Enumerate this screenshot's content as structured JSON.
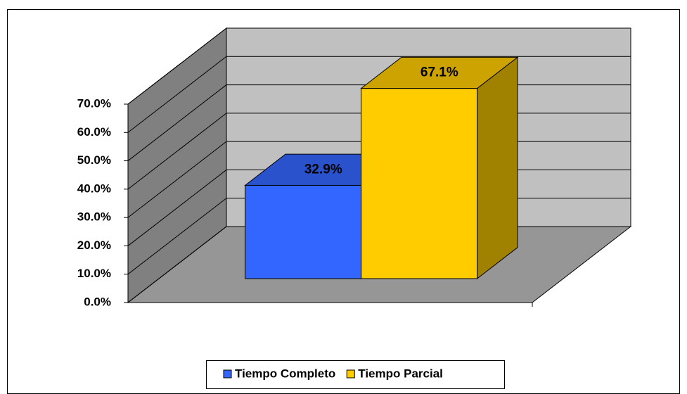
{
  "chart_data": {
    "type": "bar",
    "categories": [
      null
    ],
    "series": [
      {
        "name": "Tiempo Completo",
        "color": "#3366ff",
        "values": [
          32.9
        ],
        "value_labels": [
          "32.9%"
        ]
      },
      {
        "name": "Tiempo Parcial",
        "color": "#ffcc00",
        "values": [
          67.1
        ],
        "value_labels": [
          "67.1%"
        ]
      }
    ],
    "ylim": [
      0,
      70
    ],
    "yticks": [
      {
        "value": 0,
        "label": "0.0%"
      },
      {
        "value": 10,
        "label": "10.0%"
      },
      {
        "value": 20,
        "label": "20.0%"
      },
      {
        "value": 30,
        "label": "30.0%"
      },
      {
        "value": 40,
        "label": "40.0%"
      },
      {
        "value": 50,
        "label": "50.0%"
      },
      {
        "value": 60,
        "label": "60.0%"
      },
      {
        "value": 70,
        "label": "70.0%"
      }
    ],
    "grid": true,
    "legend": "bottom"
  }
}
